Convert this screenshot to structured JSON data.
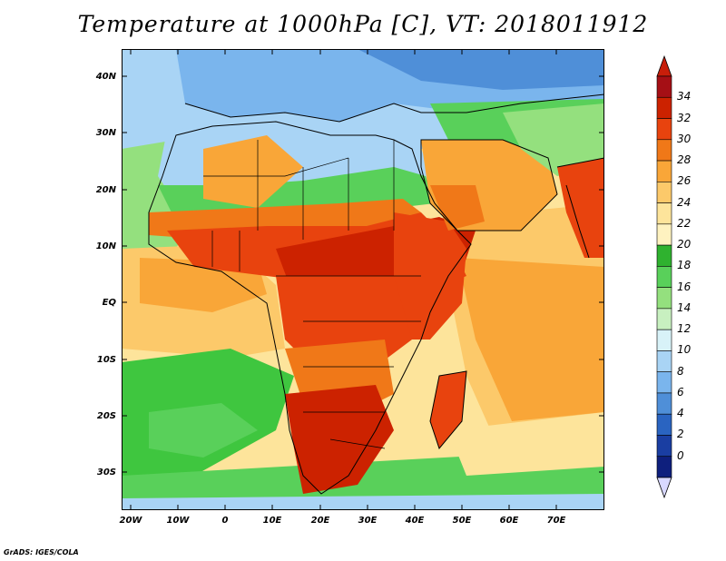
{
  "title": "Temperature at 1000hPa [C], VT: 2018011912",
  "credit": "GrADS: IGES/COLA",
  "lat_ticks": [
    "40N",
    "30N",
    "20N",
    "10N",
    "EQ",
    "10S",
    "20S",
    "30S"
  ],
  "lon_ticks": [
    "20W",
    "10W",
    "0",
    "10E",
    "20E",
    "30E",
    "40E",
    "50E",
    "60E",
    "70E"
  ],
  "colorbar": {
    "labels": [
      "34",
      "32",
      "30",
      "28",
      "26",
      "24",
      "22",
      "20",
      "18",
      "16",
      "14",
      "12",
      "10",
      "8",
      "6",
      "4",
      "2",
      "0"
    ],
    "colors": [
      "#a50f15",
      "#cc2200",
      "#e8430e",
      "#f07818",
      "#f9a638",
      "#fcc96a",
      "#fde49b",
      "#fef2c0",
      "#2fb22f",
      "#59d05a",
      "#94e07e",
      "#c8f0c0",
      "#d8f2f8",
      "#a9d4f5",
      "#7ab5ed",
      "#4f8fd8",
      "#2a64c1",
      "#1a3ea2",
      "#0e1f7d"
    ],
    "over_color": "#c81e0a",
    "under_color": "#d8d8ff"
  },
  "fields": {
    "ocean_south": "#3fc63f",
    "ocean_subtropic": "#94e07e",
    "ocean_warm": "#fcc96a",
    "ocean_tropic": "#f9a638",
    "europe": "#7ab5ed",
    "north_africa": "#a9d4f5",
    "sahel": "#f07818",
    "central": "#e8430e",
    "hot": "#cc2200",
    "south_africa": "#cc2200",
    "arabia": "#f9a638",
    "india": "#e8430e",
    "border_color": "#000000"
  }
}
